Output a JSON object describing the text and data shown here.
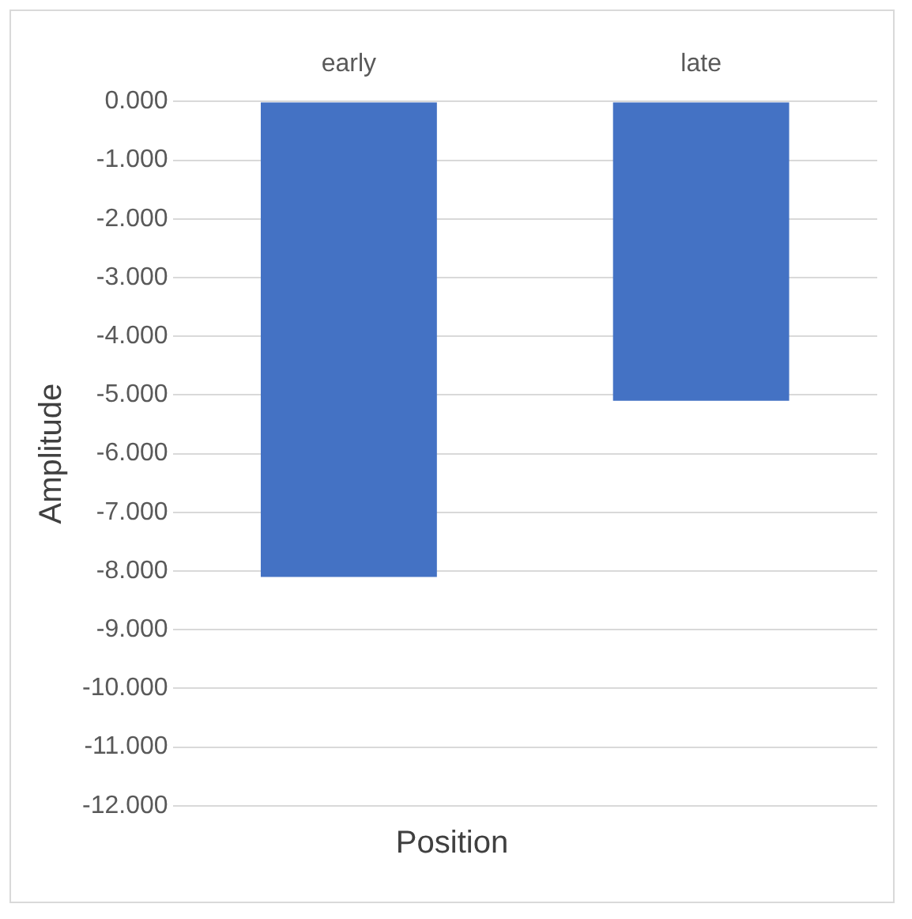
{
  "chart_data": {
    "type": "bar",
    "categories": [
      "early",
      "late"
    ],
    "values": [
      -8.1,
      -5.1
    ],
    "color": "#4472c4",
    "ylim": [
      -12,
      0
    ],
    "yticks": [
      {
        "value": 0,
        "label": "0.000"
      },
      {
        "value": -1,
        "label": "-1.000"
      },
      {
        "value": -2,
        "label": "-2.000"
      },
      {
        "value": -3,
        "label": "-3.000"
      },
      {
        "value": -4,
        "label": "-4.000"
      },
      {
        "value": -5,
        "label": "-5.000"
      },
      {
        "value": -6,
        "label": "-6.000"
      },
      {
        "value": -7,
        "label": "-7.000"
      },
      {
        "value": -8,
        "label": "-8.000"
      },
      {
        "value": -9,
        "label": "-9.000"
      },
      {
        "value": -10,
        "label": "-10.000"
      },
      {
        "value": -11,
        "label": "-11.000"
      },
      {
        "value": -12,
        "label": "-12.000"
      }
    ],
    "xlabel": "Position",
    "ylabel": "Amplitude",
    "grid": "y"
  }
}
